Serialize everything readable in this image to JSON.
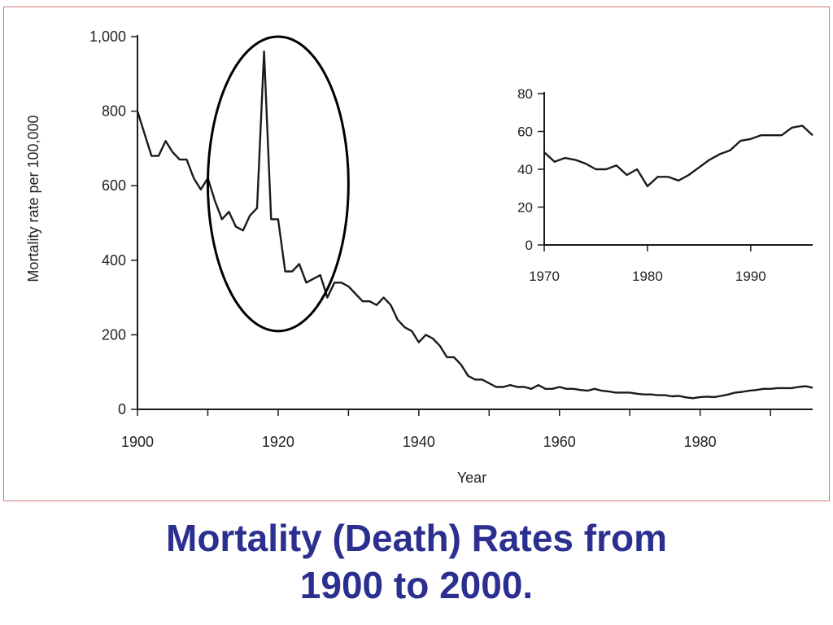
{
  "caption": {
    "line1": "Mortality (Death) Rates from",
    "line2": "1900 to 2000."
  },
  "colors": {
    "caption": "#2b2f8f",
    "frame_border": "#d27a7a",
    "series": "#1a1a1a"
  },
  "chart_data": [
    {
      "type": "line",
      "title": "",
      "xlabel": "Year",
      "ylabel": "Mortality rate per 100,000",
      "xlim": [
        1900,
        1996
      ],
      "ylim": [
        0,
        1000
      ],
      "x_ticks": [
        1900,
        1920,
        1940,
        1960,
        1980
      ],
      "x_minor_ticks": [
        1910,
        1930,
        1950,
        1970,
        1990
      ],
      "y_ticks": [
        0,
        200,
        400,
        600,
        800,
        1000
      ],
      "y_tick_labels": [
        "0",
        "200",
        "400",
        "600",
        "800",
        "1,000"
      ],
      "grid": false,
      "annotation": "ellipse highlighting the 1918 spike",
      "highlight_range": {
        "x": [
          1910,
          1930
        ],
        "y": [
          210,
          1000
        ]
      },
      "series": [
        {
          "x": [
            1900,
            1901,
            1902,
            1903,
            1904,
            1905,
            1906,
            1907,
            1908,
            1909,
            1910,
            1911,
            1912,
            1913,
            1914,
            1915,
            1916,
            1917,
            1918,
            1919,
            1920,
            1921,
            1922,
            1923,
            1924,
            1925,
            1926,
            1927,
            1928,
            1929,
            1930,
            1931,
            1932,
            1933,
            1934,
            1935,
            1936,
            1937,
            1938,
            1939,
            1940,
            1941,
            1942,
            1943,
            1944,
            1945,
            1946,
            1947,
            1948,
            1949,
            1950,
            1951,
            1952,
            1953,
            1954,
            1955,
            1956,
            1957,
            1958,
            1959,
            1960,
            1961,
            1962,
            1963,
            1964,
            1965,
            1966,
            1967,
            1968,
            1969,
            1970,
            1971,
            1972,
            1973,
            1974,
            1975,
            1976,
            1977,
            1978,
            1979,
            1980,
            1981,
            1982,
            1983,
            1984,
            1985,
            1986,
            1987,
            1988,
            1989,
            1990,
            1991,
            1992,
            1993,
            1994,
            1995,
            1996
          ],
          "values": [
            800,
            740,
            680,
            680,
            720,
            690,
            670,
            670,
            620,
            590,
            620,
            560,
            510,
            530,
            490,
            480,
            520,
            540,
            960,
            510,
            510,
            370,
            370,
            390,
            340,
            350,
            360,
            300,
            340,
            340,
            330,
            310,
            290,
            290,
            280,
            300,
            280,
            240,
            220,
            210,
            180,
            200,
            190,
            170,
            140,
            140,
            120,
            90,
            80,
            80,
            70,
            60,
            60,
            65,
            60,
            60,
            55,
            65,
            55,
            55,
            60,
            55,
            55,
            52,
            50,
            55,
            50,
            48,
            45,
            45,
            45,
            42,
            40,
            40,
            38,
            38,
            35,
            36,
            32,
            30,
            33,
            34,
            33,
            36,
            40,
            45,
            47,
            50,
            52,
            55,
            55,
            57,
            57,
            57,
            60,
            62,
            58
          ]
        }
      ]
    },
    {
      "type": "line",
      "title": "",
      "xlabel": "",
      "ylabel": "",
      "xlim": [
        1970,
        1996
      ],
      "ylim": [
        0,
        80
      ],
      "x_ticks": [
        1970,
        1980,
        1990
      ],
      "y_ticks": [
        0,
        20,
        40,
        60,
        80
      ],
      "grid": false,
      "series": [
        {
          "x": [
            1970,
            1971,
            1972,
            1973,
            1974,
            1975,
            1976,
            1977,
            1978,
            1979,
            1980,
            1981,
            1982,
            1983,
            1984,
            1985,
            1986,
            1987,
            1988,
            1989,
            1990,
            1991,
            1992,
            1993,
            1994,
            1995,
            1996
          ],
          "values": [
            49,
            44,
            46,
            45,
            43,
            40,
            40,
            42,
            37,
            40,
            31,
            36,
            36,
            34,
            37,
            41,
            45,
            48,
            50,
            55,
            56,
            58,
            58,
            58,
            62,
            63,
            58
          ]
        }
      ]
    }
  ]
}
